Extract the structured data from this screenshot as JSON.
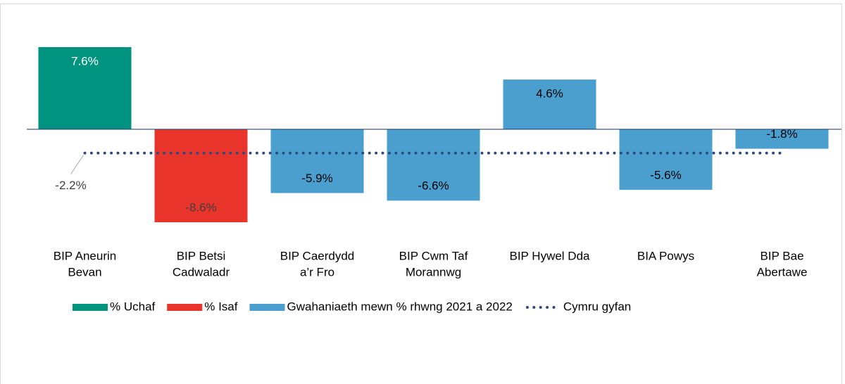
{
  "chart_data": {
    "type": "bar",
    "categories": [
      [
        "BIP Aneurin",
        "Bevan"
      ],
      [
        "BIP Betsi",
        "Cadwaladr"
      ],
      [
        "BIP Caerdydd",
        "a’r Fro"
      ],
      [
        "BIP Cwm Taf",
        "Morannwg"
      ],
      [
        "BIP Hywel Dda"
      ],
      [
        "BIA Powys"
      ],
      [
        "BIP Bae",
        "Abertawe"
      ]
    ],
    "series": [
      {
        "name": "% Uchaf",
        "color": "#009380",
        "label_color": "#ffffff",
        "values": [
          7.6,
          null,
          null,
          null,
          null,
          null,
          null
        ],
        "value_labels": [
          "7.6%",
          null,
          null,
          null,
          null,
          null,
          null
        ]
      },
      {
        "name": "% Isaf",
        "color": "#e8342a",
        "label_color": "#404040",
        "values": [
          null,
          -8.6,
          null,
          null,
          null,
          null,
          null
        ],
        "value_labels": [
          null,
          "-8.6%",
          null,
          null,
          null,
          null,
          null
        ]
      },
      {
        "name": "Gwahaniaeth mewn % rhwng 2021 a 2022",
        "color": "#4a9fcf",
        "label_color": "#000000",
        "values": [
          null,
          null,
          -5.9,
          -6.6,
          4.6,
          -5.6,
          -1.8
        ],
        "value_labels": [
          null,
          null,
          "-5.9%",
          "-6.6%",
          "4.6%",
          "-5.6%",
          "-1.8%"
        ]
      }
    ],
    "reference_line": {
      "name": "Cymru gyfan",
      "color": "#2e4a7d",
      "style": "dotted",
      "value": -2.2,
      "value_label": "-2.2%"
    },
    "legend": "bottom"
  }
}
